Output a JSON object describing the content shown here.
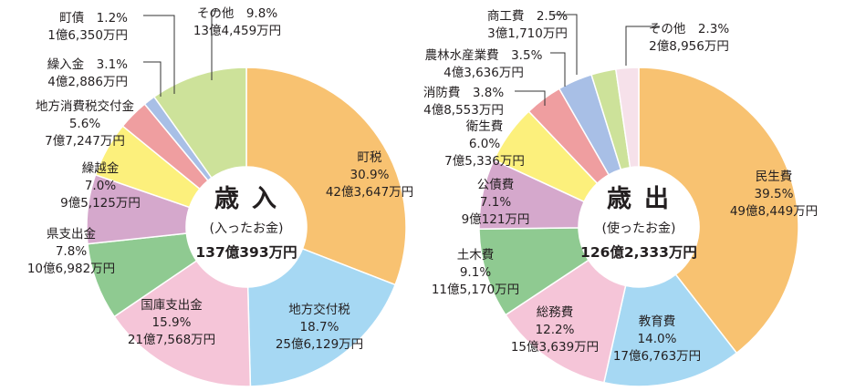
{
  "chart_data": [
    {
      "type": "pie",
      "center": {
        "title": "歳　入",
        "subtitle": "(入ったお金)",
        "total": "137億393万円"
      },
      "slices": [
        {
          "name": "町税",
          "percent": 30.9,
          "amount": "42億3,647万円",
          "color": "#f8c271"
        },
        {
          "name": "地方交付税",
          "percent": 18.7,
          "amount": "25億6,129万円",
          "color": "#a6d8f3"
        },
        {
          "name": "国庫支出金",
          "percent": 15.9,
          "amount": "21億7,568万円",
          "color": "#f5c5d8"
        },
        {
          "name": "県支出金",
          "percent": 7.8,
          "amount": "10億6,982万円",
          "color": "#8fca91"
        },
        {
          "name": "繰越金",
          "percent": 7.0,
          "amount": "9億5,125万円",
          "color": "#d5a8cc"
        },
        {
          "name": "地方消費税交付金",
          "percent": 5.6,
          "amount": "7億7,247万円",
          "color": "#fcf07c"
        },
        {
          "name": "繰入金",
          "percent": 3.1,
          "amount": "4億2,886万円",
          "color": "#ef9ea0"
        },
        {
          "name": "町債",
          "percent": 1.2,
          "amount": "1億6,350万円",
          "color": "#a8bfe6"
        },
        {
          "name": "その他",
          "percent": 9.8,
          "amount": "13億4,459万円",
          "color": "#cde29a"
        }
      ]
    },
    {
      "type": "pie",
      "center": {
        "title": "歳　出",
        "subtitle": "(使ったお金)",
        "total": "126億2,333万円"
      },
      "slices": [
        {
          "name": "民生費",
          "percent": 39.5,
          "amount": "49億8,449万円",
          "color": "#f8c271"
        },
        {
          "name": "教育費",
          "percent": 14.0,
          "amount": "17億6,763万円",
          "color": "#a6d8f3"
        },
        {
          "name": "総務費",
          "percent": 12.2,
          "amount": "15億3,639万円",
          "color": "#f5c5d8"
        },
        {
          "name": "土木費",
          "percent": 9.1,
          "amount": "11億5,170万円",
          "color": "#8fca91"
        },
        {
          "name": "公債費",
          "percent": 7.1,
          "amount": "9億121万円",
          "color": "#d5a8cc"
        },
        {
          "name": "衛生費",
          "percent": 6.0,
          "amount": "7億5,336万円",
          "color": "#fcf07c"
        },
        {
          "name": "消防費",
          "percent": 3.8,
          "amount": "4億8,553万円",
          "color": "#ef9ea0"
        },
        {
          "name": "農林水産業費",
          "percent": 3.5,
          "amount": "4億3,636万円",
          "color": "#a8bfe6"
        },
        {
          "name": "商工費",
          "percent": 2.5,
          "amount": "3億1,710万円",
          "color": "#cde29a"
        },
        {
          "name": "その他",
          "percent": 2.3,
          "amount": "2億8,956万円",
          "color": "#f6e1ea"
        }
      ]
    }
  ]
}
